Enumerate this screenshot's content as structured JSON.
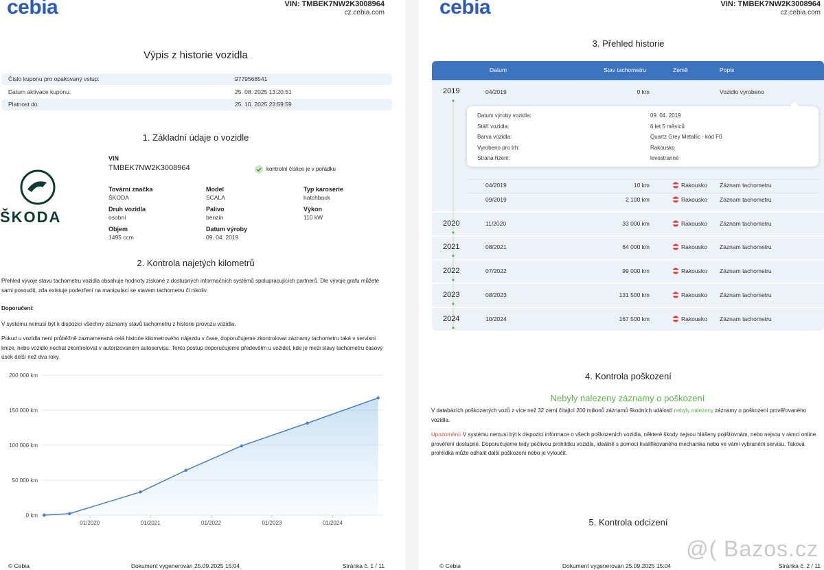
{
  "page1": {
    "header": {
      "logo": "cebia",
      "vin": "VIN: TMBEK7NW2K3008964",
      "site": "cz.cebia.com"
    },
    "title": "Výpis z historie vozidla",
    "coupon": [
      [
        "Číslo kuponu pro opakovaný vstup:",
        "9779568541"
      ],
      [
        "Datum aktivace kuponu:",
        "25. 08. 2025 13:20:51"
      ],
      [
        "Platnost do:",
        "25. 10. 2025 23:59:59"
      ]
    ],
    "section1": {
      "title": "1. Základní údaje o vozidle",
      "brand_logo": "ŠKODA",
      "vin_label": "VIN",
      "vin": "TMBEK7NW2K3008964",
      "vin_check": "kontrolní číslice je v pořádku",
      "fields": [
        {
          "label": "Tovární značka",
          "value": "ŠKODA"
        },
        {
          "label": "Model",
          "value": "SCALA"
        },
        {
          "label": "Typ karoserie",
          "value": "hatchback"
        },
        {
          "label": "Druh vozidla",
          "value": "osobní"
        },
        {
          "label": "Palivo",
          "value": "benzín"
        },
        {
          "label": "Výkon",
          "value": "110 kW"
        },
        {
          "label": "Objem",
          "value": "1495 ccm"
        },
        {
          "label": "Datum výroby",
          "value": "09. 04. 2019"
        }
      ]
    },
    "section2": {
      "title": "2. Kontrola najetých kilometrů",
      "intro": "Přehled vývoje stavu tachometru vozidla obsahuje hodnoty získané z dostupných informačních systémů spolupracujících partnerů. Dle vývoje grafu můžete sami posoudit, zda existuje podezření na manipulaci se stavem tachometru či nikoliv.",
      "recommend_label": "Doporučení:",
      "paragraphs": [
        "V systému nemusí být k dispozici všechny záznamy stavů tachometru z historie provozu vozidla.",
        "Pokud u vozidla není průběžně zaznamenaná celá historie kilometrového nájezdu v čase, doporučujeme zkontrolovat záznamy tachometru také v servisní knize, nebo vozidlo nechat zkontrolovat v autorizovaném autoservisu. Tento postup doporučujeme především u vozidel, kde je mezi stavy tachometru časový úsek delší než dva roky."
      ]
    },
    "footer": {
      "left": "© Cebia",
      "center": "Dokument vygenerován 25.09.2025 15:04",
      "right": "Stránka č. 1 / 11"
    }
  },
  "chart_data": {
    "type": "line",
    "x": [
      "2019-04",
      "2019-04",
      "2019-09",
      "2020-11",
      "2021-08",
      "2022-07",
      "2023-08",
      "2024-10"
    ],
    "values": [
      0,
      10,
      2100,
      33000,
      64000,
      99000,
      131500,
      167500
    ],
    "color": "#4a7fc0",
    "xlim": [
      "2019-03",
      "2024-11"
    ],
    "xticks": [
      {
        "value": "2020-01",
        "label": "01/2020"
      },
      {
        "value": "2021-01",
        "label": "01/2021"
      },
      {
        "value": "2022-01",
        "label": "01/2022"
      },
      {
        "value": "2023-01",
        "label": "01/2023"
      },
      {
        "value": "2024-01",
        "label": "01/2024"
      }
    ],
    "ylim": [
      0,
      200000
    ],
    "yticks": [
      {
        "value": 0,
        "label": "0 km"
      },
      {
        "value": 50000,
        "label": "50 000 km"
      },
      {
        "value": 100000,
        "label": "100 000 km"
      },
      {
        "value": 150000,
        "label": "150 000 km"
      },
      {
        "value": 200000,
        "label": "200 000 km"
      }
    ],
    "grid": true
  },
  "page2": {
    "header": {
      "logo": "cebia",
      "vin": "VIN: TMBEK7NW2K3008964",
      "site": "cz.cebia.com"
    },
    "section3": {
      "title": "3. Přehled historie",
      "columns": [
        "Datum",
        "Stav tachometru",
        "Země",
        "Popis"
      ],
      "years": [
        {
          "year": "2019",
          "rows": [
            {
              "date": "04/2019",
              "km": "0 km",
              "desc": "Vozidlo vyrobeno"
            },
            {
              "date": "04/2019",
              "km": "10 km",
              "country": "Rakousko",
              "desc": "Záznam tachometru"
            },
            {
              "date": "09/2019",
              "km": "2 100 km",
              "country": "Rakousko",
              "desc": "Záznam tachometru"
            }
          ],
          "detail": [
            [
              "Datum výroby vozidla:",
              "09. 04. 2019"
            ],
            [
              "Stáří vozidla:",
              "6 let 5 měsíců"
            ],
            [
              "Barva vozidla:",
              "Quartz Grey Metallic - kód F0"
            ],
            [
              "Vyrobeno pro trh:",
              "Rakousko"
            ],
            [
              "Strana řízení:",
              "levostranné"
            ]
          ]
        },
        {
          "year": "2020",
          "rows": [
            {
              "date": "11/2020",
              "km": "33 000 km",
              "country": "Rakousko",
              "desc": "Záznam tachometru"
            }
          ]
        },
        {
          "year": "2021",
          "rows": [
            {
              "date": "08/2021",
              "km": "64 000 km",
              "country": "Rakousko",
              "desc": "Záznam tachometru"
            }
          ]
        },
        {
          "year": "2022",
          "rows": [
            {
              "date": "07/2022",
              "km": "99 000 km",
              "country": "Rakousko",
              "desc": "Záznam tachometru"
            }
          ]
        },
        {
          "year": "2023",
          "rows": [
            {
              "date": "08/2023",
              "km": "131 500 km",
              "country": "Rakousko",
              "desc": "Záznam tachometru"
            }
          ]
        },
        {
          "year": "2024",
          "rows": [
            {
              "date": "10/2024",
              "km": "167 500 km",
              "country": "Rakousko",
              "desc": "Záznam tachometru"
            }
          ]
        }
      ]
    },
    "section4": {
      "title": "4. Kontrola poškození",
      "headline": "Nebyly nalezeny záznamy o poškození",
      "text": [
        "V databázích poškozených vozů z více než 32 zemí čítající 200 milionů záznamů škodních událostí",
        "nebyly nalezeny",
        "záznamy o poškození prověřovaného vozidla."
      ],
      "warning_label": "Upozornění:",
      "warning": "V systému nemusí být k dispozici informace o všech poškozeních vozidla, některé škody nejsou hlášeny pojišťovnám, nebo nejsou v rámci online prověření dostupné. Doporučujeme tedy pečlivou prohlídku vozidla, ideálně s pomocí kvalifikovaného mechanika nebo ve vámi vybraném servisu. Taková prohlídka může odhalit další poškození nebo je vyloučit."
    },
    "section5": {
      "title": "5. Kontrola odcizení"
    },
    "footer": {
      "left": "© Cebia",
      "center": "Dokument vygenerován 25.09.2025 15:04",
      "right": "Stránka č. 2 / 11"
    },
    "watermark": "@( Bazos.cz"
  }
}
